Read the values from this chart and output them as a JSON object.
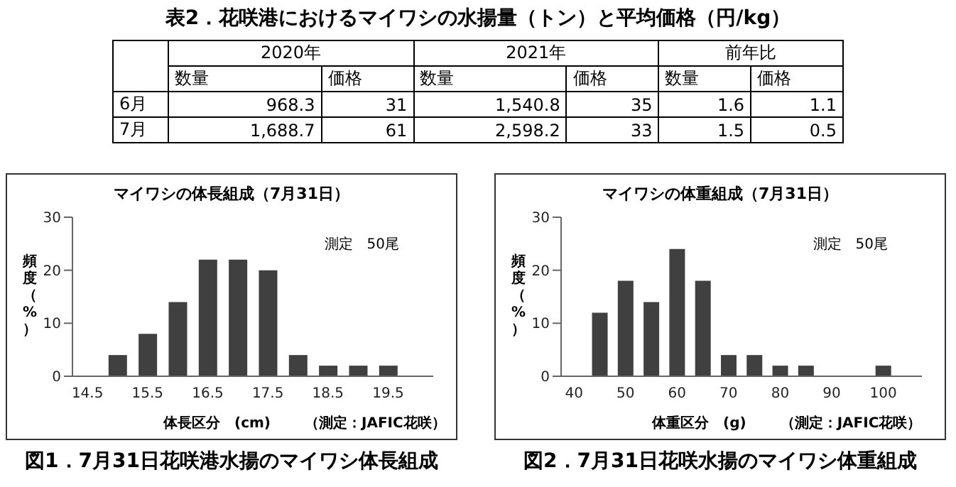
{
  "chart_data": [
    {
      "type": "other",
      "title": "表2．花咲港におけるマイワシの水揚量（トン）と平均価格（円/kg）",
      "annotations": [
        "2020年",
        "2021年",
        "前年比",
        "数量",
        "価格",
        "数量",
        "価格",
        "数量",
        "価格",
        "6月",
        "968.3",
        "31",
        "1,540.8",
        "35",
        "1.6",
        "1.1",
        "7月",
        "1,688.7",
        "61",
        "2,598.2",
        "33",
        "1.5",
        "0.5"
      ]
    },
    {
      "type": "bar",
      "title": "マイワシの体長組成（7月31日）",
      "xlabel": "体長区分　(cm)",
      "ylabel": "頻度（%）",
      "categories": [
        "14.5",
        null,
        "15.5",
        null,
        "16.5",
        null,
        "17.5",
        null,
        "18.5",
        null,
        "19.5",
        null
      ],
      "values": [
        0,
        4,
        8,
        14,
        22,
        22,
        20,
        4,
        2,
        2,
        2,
        0
      ],
      "color": "#404040",
      "ylim": [
        0,
        30
      ],
      "yticks": [
        0,
        10,
        20,
        30
      ],
      "grid": false,
      "legend": false,
      "annotations": [
        "測定　50尾",
        "（測定：JAFIC花咲）",
        "図1．7月31日花咲港水揚のマイワシ体長組成"
      ]
    },
    {
      "type": "bar",
      "title": "マイワシの体重組成（7月31日）",
      "xlabel": "体重区分　(g)",
      "ylabel": "頻度（%）",
      "categories": [
        "40",
        null,
        "50",
        null,
        "60",
        null,
        "70",
        null,
        "80",
        null,
        "90",
        null,
        "100",
        null
      ],
      "values": [
        0,
        12,
        18,
        14,
        24,
        18,
        4,
        4,
        2,
        2,
        0,
        0,
        2,
        0
      ],
      "color": "#404040",
      "ylim": [
        0,
        30
      ],
      "yticks": [
        0,
        10,
        20,
        30
      ],
      "grid": false,
      "legend": false,
      "annotations": [
        "測定　50尾",
        "（測定：JAFIC花咲）",
        "図2．7月31日花咲水揚のマイワシ体重組成"
      ]
    }
  ]
}
